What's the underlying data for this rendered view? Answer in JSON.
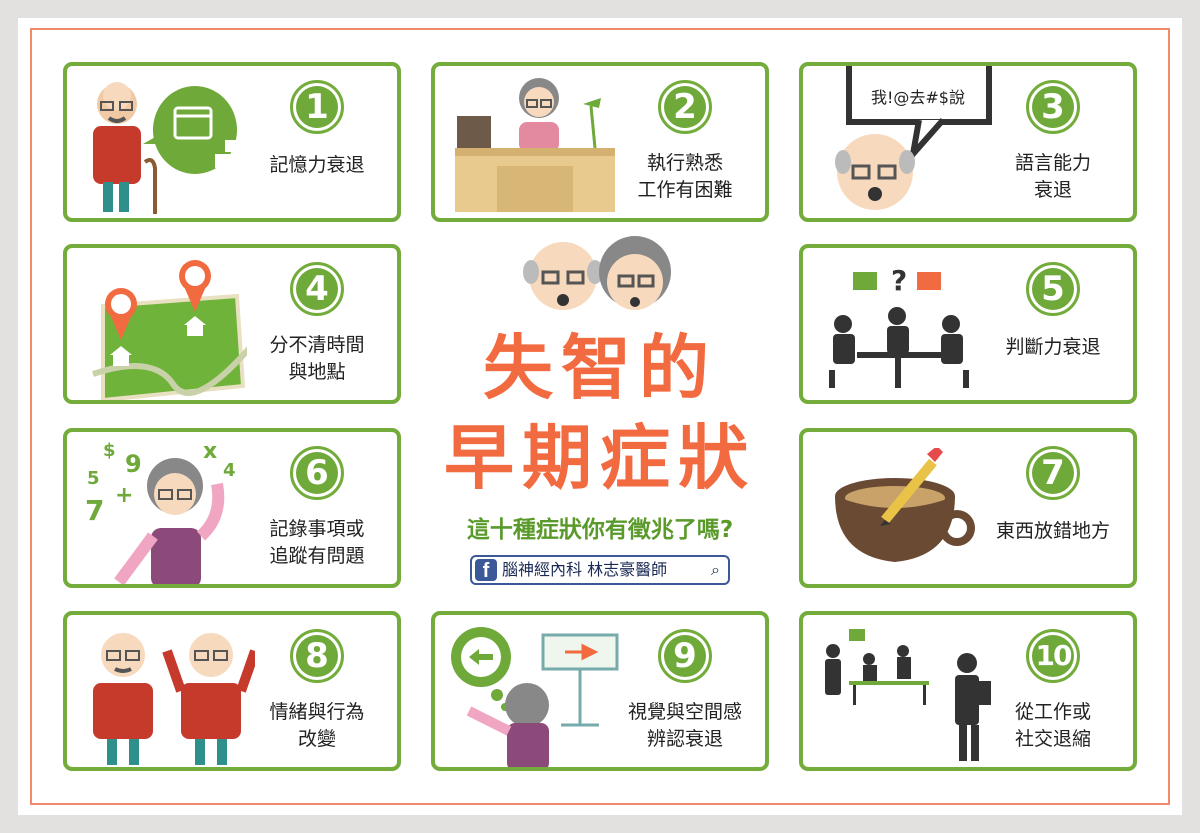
{
  "title": {
    "line1": "失智的",
    "line2": "早期症狀"
  },
  "subtitle": "這十種症狀你有徵兆了嗎?",
  "facebook": {
    "icon": "facebook-icon",
    "text": "腦神經內科 林志豪醫師",
    "search_icon": "search-icon"
  },
  "colors": {
    "accent_green": "#74ac3b",
    "title_orange": "#f26a3f",
    "border_salmon": "#f08a6a"
  },
  "cards": [
    {
      "number": "1",
      "label": "記憶力衰退",
      "icon": "calendar-puzzle-icon"
    },
    {
      "number": "2",
      "label": "執行熟悉\n工作有困難",
      "icon": "desk-lamp-icon"
    },
    {
      "number": "3",
      "label": "語言能力\n衰退",
      "icon": "speech-bubble-icon",
      "bubble_text": "我!@去#$說"
    },
    {
      "number": "4",
      "label": "分不清時間\n與地點",
      "icon": "map-pin-icon"
    },
    {
      "number": "5",
      "label": "判斷力衰退",
      "icon": "meeting-icon"
    },
    {
      "number": "6",
      "label": "記錄事項或\n追蹤有問題",
      "icon": "numbers-confusion-icon"
    },
    {
      "number": "7",
      "label": "東西放錯地方",
      "icon": "coffee-pencil-icon"
    },
    {
      "number": "8",
      "label": "情緒與行為\n改變",
      "icon": "angry-elder-icon"
    },
    {
      "number": "9",
      "label": "視覺與空間感\n辨認衰退",
      "icon": "direction-sign-icon"
    },
    {
      "number": "10",
      "label": "從工作或\n社交退縮",
      "icon": "withdrawn-worker-icon"
    }
  ]
}
